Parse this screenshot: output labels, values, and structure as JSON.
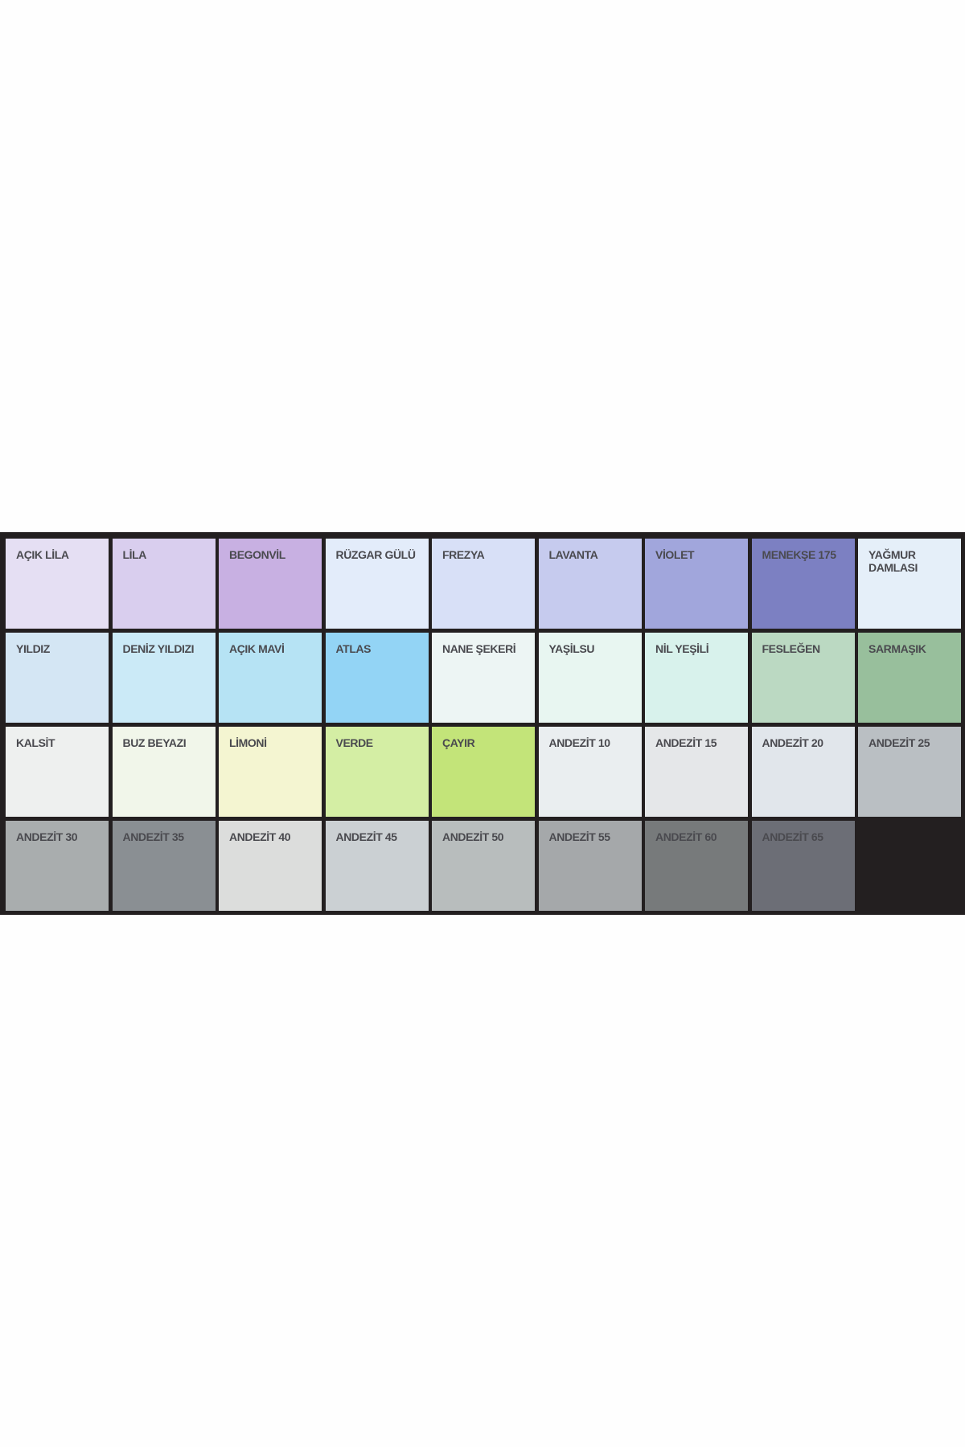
{
  "swatches": [
    {
      "name": "AÇIK LİLA",
      "color": "#e5dff3"
    },
    {
      "name": "LİLA",
      "color": "#d9ceee"
    },
    {
      "name": "BEGONVİL",
      "color": "#c8b0e2"
    },
    {
      "name": "RÜZGAR GÜLÜ",
      "color": "#e3ecfa"
    },
    {
      "name": "FREZYA",
      "color": "#d8e0f7"
    },
    {
      "name": "LAVANTA",
      "color": "#c6cbee"
    },
    {
      "name": "VİOLET",
      "color": "#a1a6dc"
    },
    {
      "name": "MENEKŞE 175",
      "color": "#7c80c2"
    },
    {
      "name": "YAĞMUR DAMLASI",
      "color": "#e5eff9"
    },
    {
      "name": "YILDIZ",
      "color": "#d4e6f4"
    },
    {
      "name": "DENİZ YILDIZI",
      "color": "#cbeaf7"
    },
    {
      "name": "AÇIK MAVİ",
      "color": "#b6e3f4"
    },
    {
      "name": "ATLAS",
      "color": "#93d4f5"
    },
    {
      "name": "NANE ŞEKERİ",
      "color": "#edf5f4"
    },
    {
      "name": "YAŞİLSU",
      "color": "#e8f6f1"
    },
    {
      "name": "NİL YEŞİLİ",
      "color": "#d8f2ec"
    },
    {
      "name": "FESLEĞEN",
      "color": "#bbd9c2"
    },
    {
      "name": "SARMAŞIK",
      "color": "#98bf9c"
    },
    {
      "name": "KALSİT",
      "color": "#eef0ef"
    },
    {
      "name": "BUZ BEYAZI",
      "color": "#f1f6ea"
    },
    {
      "name": "LİMONİ",
      "color": "#f4f5d1"
    },
    {
      "name": "VERDE",
      "color": "#d4eea4"
    },
    {
      "name": "ÇAYIR",
      "color": "#c3e479"
    },
    {
      "name": "ANDEZİT 10",
      "color": "#eaeef0"
    },
    {
      "name": "ANDEZİT 15",
      "color": "#e5e7e9"
    },
    {
      "name": "ANDEZİT 20",
      "color": "#e1e6eb"
    },
    {
      "name": "ANDEZİT 25",
      "color": "#babfc3"
    },
    {
      "name": "ANDEZİT 30",
      "color": "#a9adae"
    },
    {
      "name": "ANDEZİT 35",
      "color": "#8a8f93"
    },
    {
      "name": "ANDEZİT 40",
      "color": "#dcdddc"
    },
    {
      "name": "ANDEZİT 45",
      "color": "#cbd0d3"
    },
    {
      "name": "ANDEZİT 50",
      "color": "#b8bdbd"
    },
    {
      "name": "ANDEZİT 55",
      "color": "#a5a8aa"
    },
    {
      "name": "ANDEZİT 60",
      "color": "#777a7b"
    },
    {
      "name": "ANDEZİT 65",
      "color": "#6c6e76"
    }
  ]
}
